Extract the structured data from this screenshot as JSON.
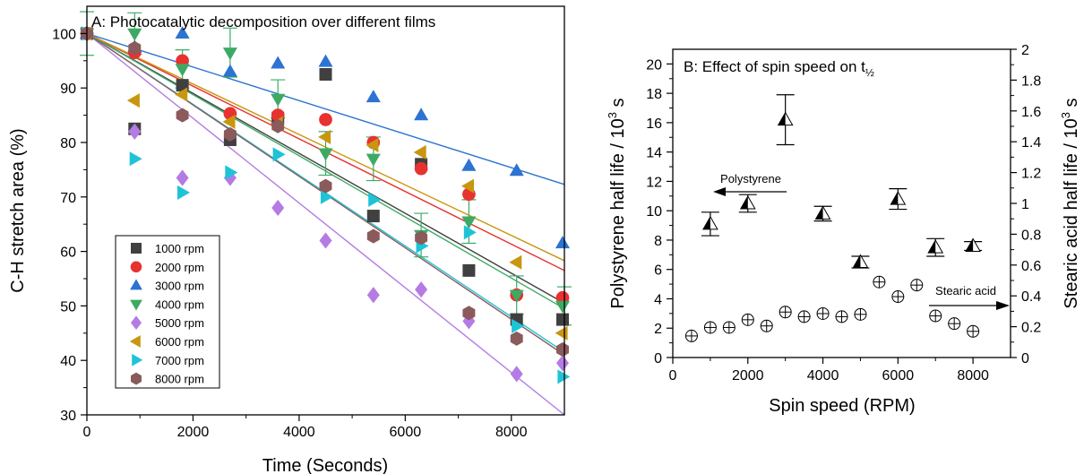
{
  "chart_data": [
    {
      "type": "scatter",
      "title": "A: Photocatalytic decomposition over different films",
      "xlabel": "Time (Seconds)",
      "ylabel": "C-H stretch area (%)",
      "xlim": [
        0,
        9000
      ],
      "ylim": [
        30,
        105
      ],
      "xticks": [
        "0",
        "2000",
        "4000",
        "6000",
        "8000"
      ],
      "yticks": [
        "30",
        "40",
        "50",
        "60",
        "70",
        "80",
        "90",
        "100"
      ],
      "legend": "bottom-left",
      "grid": false,
      "x": [
        0,
        900,
        1800,
        2700,
        3600,
        4500,
        5400,
        6300,
        7200,
        8100,
        9000
      ],
      "series": [
        {
          "name": "1000 rpm",
          "color": "#404040",
          "marker": "square",
          "values": [
            100,
            82.5,
            90.5,
            80.5,
            84.5,
            92.5,
            66.5,
            76,
            56.5,
            47.5,
            47.5
          ],
          "fit": [
            100,
            50.5
          ]
        },
        {
          "name": "2000 rpm",
          "color": "#e8322f",
          "marker": "circle",
          "values": [
            100,
            96.5,
            95,
            85.3,
            85,
            84.2,
            80,
            75.2,
            70.5,
            52,
            51.5
          ],
          "fit": [
            100,
            56.5
          ]
        },
        {
          "name": "3000 rpm",
          "color": "#2c73d2",
          "marker": "triangle-up",
          "values": [
            100,
            97.5,
            100,
            93,
            94.5,
            94.8,
            88.3,
            85,
            75.7,
            74.8,
            61.5
          ],
          "fit": [
            100,
            72.3
          ]
        },
        {
          "name": "4000 rpm",
          "color": "#3daa64",
          "marker": "triangle-down",
          "values": [
            100,
            100,
            93.5,
            96.5,
            88,
            78,
            77,
            63,
            65.5,
            52,
            50
          ],
          "fit": [
            100,
            49.5
          ]
        },
        {
          "name": "5000 rpm",
          "color": "#b57be4",
          "marker": "diamond",
          "values": [
            100,
            82,
            73.5,
            73.5,
            68,
            62,
            52,
            53,
            47.2,
            37.5,
            39.5
          ],
          "fit": [
            100,
            30
          ]
        },
        {
          "name": "6000 rpm",
          "color": "#c8960f",
          "marker": "triangle-left",
          "values": [
            100,
            87.7,
            88.8,
            83.8,
            83.5,
            81,
            79.5,
            78.2,
            72,
            58,
            45
          ],
          "fit": [
            100,
            58.3
          ]
        },
        {
          "name": "7000 rpm",
          "color": "#1ec4d6",
          "marker": "triangle-right",
          "values": [
            100,
            77,
            70.8,
            74.5,
            77.8,
            70,
            69.5,
            61,
            63.5,
            46.3,
            37
          ],
          "fit": [
            100,
            41.5
          ]
        },
        {
          "name": "8000 rpm",
          "color": "#8b5a5a",
          "marker": "hexagon",
          "values": [
            100,
            97.3,
            85,
            81.5,
            83,
            72,
            62.8,
            62.5,
            48.7,
            44,
            42
          ],
          "fit": [
            100,
            41
          ]
        }
      ],
      "error_bars": [
        {
          "series": "4000 rpm",
          "x": 900,
          "y": 100,
          "err": 3.8
        },
        {
          "series": "4000 rpm",
          "x": 1800,
          "y": 93.5,
          "err": 3.5
        },
        {
          "series": "4000 rpm",
          "x": 2700,
          "y": 96.5,
          "err": 4.5
        },
        {
          "series": "4000 rpm",
          "x": 3600,
          "y": 88,
          "err": 3.5
        },
        {
          "series": "4000 rpm",
          "x": 4500,
          "y": 78,
          "err": 4
        },
        {
          "series": "4000 rpm",
          "x": 5400,
          "y": 77,
          "err": 4
        },
        {
          "series": "4000 rpm",
          "x": 6300,
          "y": 63,
          "err": 4
        },
        {
          "series": "4000 rpm",
          "x": 7200,
          "y": 65.5,
          "err": 4
        },
        {
          "series": "4000 rpm",
          "x": 8100,
          "y": 52,
          "err": 3.5
        },
        {
          "series": "4000 rpm",
          "x": 9000,
          "y": 50,
          "err": 3.5
        },
        {
          "series": "4000 rpm",
          "x": 0,
          "y": 100,
          "err": 4
        }
      ]
    },
    {
      "type": "scatter",
      "title": "B: Effect of spin speed on t",
      "title_subscript": "½",
      "xlabel": "Spin speed (RPM)",
      "ylabel_left": "Polystyrene half life / 10",
      "ylabel_left_sup": "3",
      "ylabel_left_unit": " s",
      "ylabel_right": "Stearic acid half life / 10",
      "ylabel_right_sup": "3",
      "ylabel_right_unit": " s",
      "xlim": [
        0,
        9000
      ],
      "ylim_left": [
        0,
        21
      ],
      "ylim_right": [
        0,
        2
      ],
      "xticks": [
        "0",
        "2000",
        "4000",
        "6000",
        "8000"
      ],
      "yticks_left": [
        "0",
        "2",
        "4",
        "6",
        "8",
        "10",
        "12",
        "14",
        "16",
        "18",
        "20"
      ],
      "yticks_right": [
        "0",
        "0.2",
        "0.4",
        "0.6",
        "0.8",
        "1",
        "1.2",
        "1.4",
        "1.6",
        "1.8",
        "2"
      ],
      "annotations": [
        {
          "text": "Polystyrene",
          "arrow": "left"
        },
        {
          "text": "Stearic acid",
          "arrow": "right"
        }
      ],
      "series": [
        {
          "name": "Polystyrene",
          "axis": "left",
          "marker": "half-filled-triangle",
          "x": [
            1000,
            2000,
            3000,
            4000,
            5000,
            6000,
            7000,
            8000
          ],
          "values": [
            9.1,
            10.5,
            16.2,
            9.8,
            6.5,
            10.8,
            7.5,
            7.6
          ],
          "errors": [
            0.8,
            0.6,
            1.7,
            0.5,
            0.4,
            0.7,
            0.6,
            0.3
          ]
        },
        {
          "name": "Stearic acid",
          "axis": "right",
          "marker": "circle-plus",
          "x": [
            500,
            1000,
            1500,
            2000,
            2500,
            3000,
            3500,
            4000,
            4500,
            5000,
            5500,
            6000,
            6500,
            7000,
            7500,
            8000
          ],
          "values": [
            0.14,
            0.195,
            0.195,
            0.245,
            0.205,
            0.295,
            0.265,
            0.285,
            0.265,
            0.28,
            0.49,
            0.395,
            0.47,
            0.27,
            0.22,
            0.17
          ]
        }
      ]
    }
  ]
}
